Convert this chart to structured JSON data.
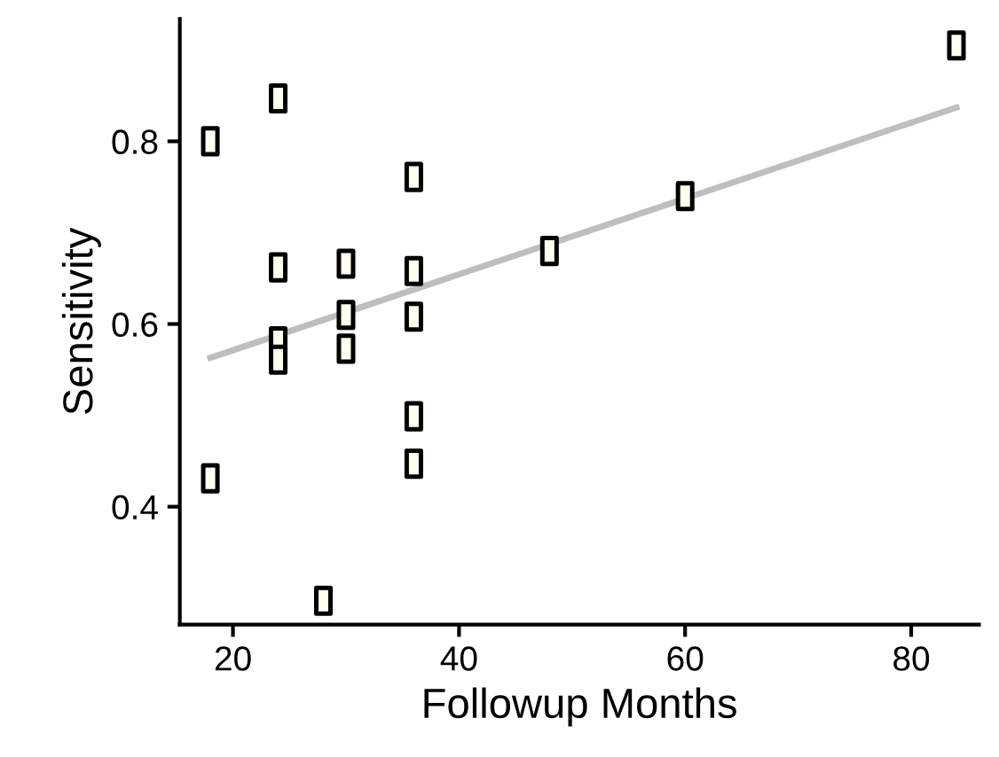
{
  "chart_data": {
    "type": "scatter",
    "xlabel": "Followup Months",
    "ylabel": "Sensitivity",
    "xlim": [
      15.3,
      86
    ],
    "ylim": [
      0.271,
      0.934
    ],
    "xticks": [
      20,
      40,
      60,
      80
    ],
    "yticks": [
      0.4,
      0.6,
      0.8
    ],
    "grid": false,
    "legend": false,
    "series": [
      {
        "color": "#000000",
        "marker": "square",
        "x": [
          18,
          18,
          24,
          24,
          24,
          24,
          28,
          30,
          30,
          30,
          36,
          36,
          36,
          36,
          36,
          48,
          60,
          84
        ],
        "values": [
          0.8,
          0.431,
          0.847,
          0.662,
          0.581,
          0.561,
          0.297,
          0.666,
          0.61,
          0.573,
          0.761,
          0.658,
          0.608,
          0.499,
          0.447,
          0.68,
          0.74,
          0.905
        ]
      },
      {
        "type": "line",
        "color": "#bebebe",
        "marker": "none",
        "x": [
          18,
          84
        ],
        "values": [
          0.563,
          0.837
        ],
        "line_style": "solid"
      }
    ]
  }
}
